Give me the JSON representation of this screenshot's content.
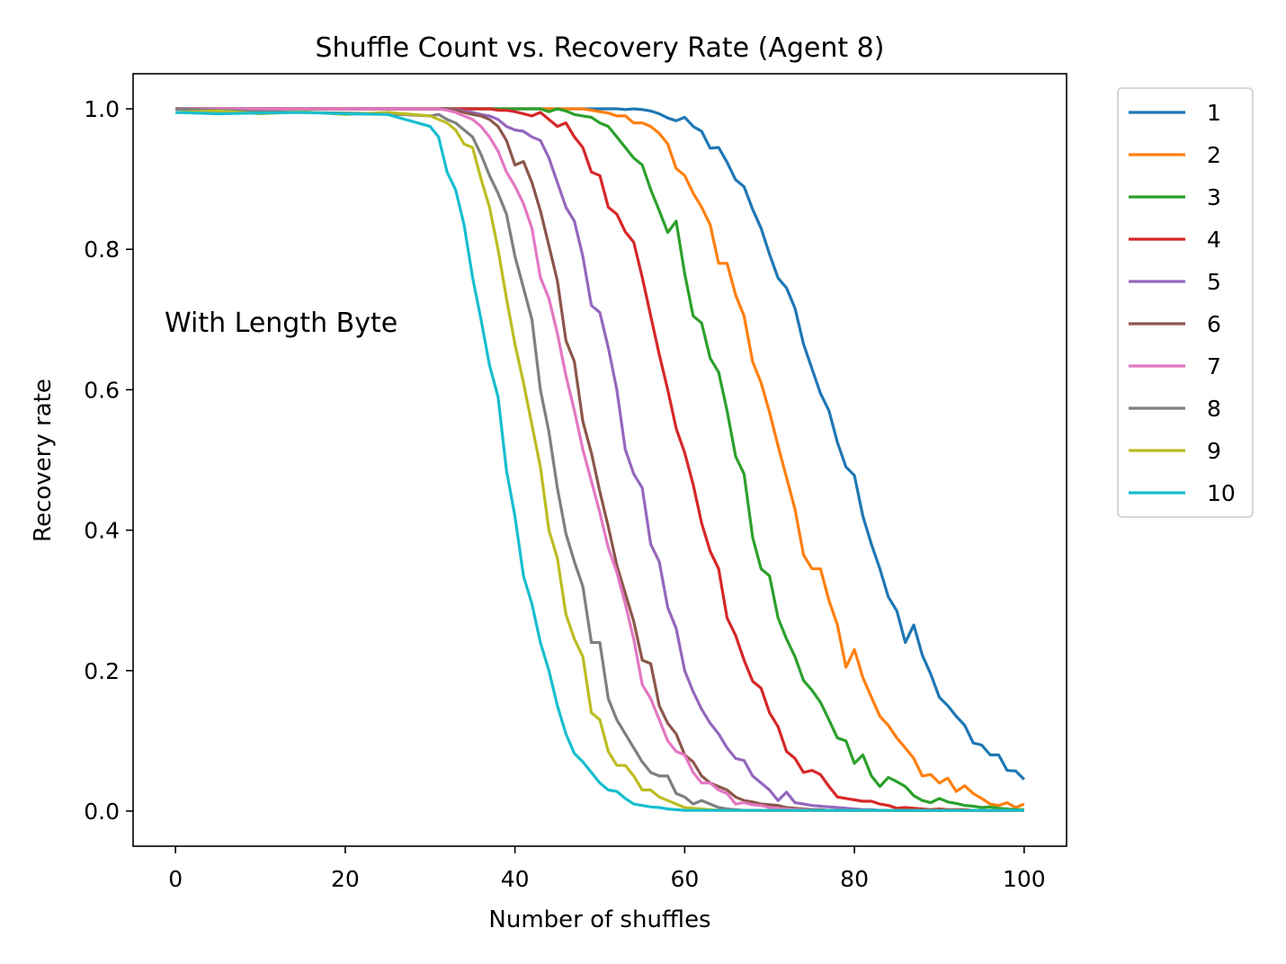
{
  "chart_data": {
    "type": "line",
    "title": "Shuffle Count vs. Recovery Rate (Agent 8)",
    "xlabel": "Number of shuffles",
    "ylabel": "Recovery rate",
    "xlim": [
      -5,
      105
    ],
    "ylim": [
      -0.05,
      1.05
    ],
    "xticks": [
      0,
      20,
      40,
      60,
      80,
      100
    ],
    "yticks": [
      0.0,
      0.2,
      0.4,
      0.6,
      0.8,
      1.0
    ],
    "xtick_labels": [
      "0",
      "20",
      "40",
      "60",
      "80",
      "100"
    ],
    "ytick_labels": [
      "0.0",
      "0.2",
      "0.4",
      "0.6",
      "0.8",
      "1.0"
    ],
    "grid": false,
    "legend_position": "outside right, top",
    "annotation": "With Length Byte",
    "x": [
      0,
      5,
      10,
      15,
      20,
      25,
      30,
      31,
      32,
      33,
      34,
      35,
      36,
      37,
      38,
      39,
      40,
      41,
      42,
      43,
      44,
      45,
      46,
      47,
      48,
      49,
      50,
      51,
      52,
      53,
      54,
      55,
      56,
      57,
      58,
      59,
      60,
      61,
      62,
      63,
      64,
      65,
      66,
      67,
      68,
      69,
      70,
      71,
      72,
      73,
      74,
      75,
      76,
      77,
      78,
      79,
      80,
      81,
      82,
      83,
      84,
      85,
      86,
      87,
      88,
      89,
      90,
      91,
      92,
      93,
      94,
      95,
      96,
      97,
      98,
      99,
      100
    ],
    "series": [
      {
        "name": "1",
        "color": "#1f77b4",
        "values": [
          1.0,
          1.0,
          1.0,
          1.0,
          1.0,
          1.0,
          1.0,
          1.0,
          1.0,
          1.0,
          1.0,
          1.0,
          1.0,
          1.0,
          1.0,
          1.0,
          1.0,
          1.0,
          1.0,
          1.0,
          1.0,
          1.0,
          1.0,
          1.0,
          1.0,
          1.0,
          1.0,
          1.0,
          1.0,
          0.999,
          1.0,
          0.999,
          0.997,
          0.993,
          0.987,
          0.983,
          0.988,
          0.975,
          0.968,
          0.944,
          0.945,
          0.924,
          0.899,
          0.889,
          0.857,
          0.83,
          0.793,
          0.759,
          0.745,
          0.716,
          0.665,
          0.63,
          0.595,
          0.57,
          0.525,
          0.49,
          0.478,
          0.42,
          0.38,
          0.345,
          0.305,
          0.285,
          0.24,
          0.265,
          0.222,
          0.195,
          0.162,
          0.15,
          0.135,
          0.122,
          0.097,
          0.094,
          0.08,
          0.08,
          0.058,
          0.057,
          0.045
        ]
      },
      {
        "name": "2",
        "color": "#ff7f0e",
        "values": [
          1.0,
          1.0,
          1.0,
          1.0,
          1.0,
          1.0,
          1.0,
          1.0,
          1.0,
          1.0,
          1.0,
          1.0,
          1.0,
          1.0,
          1.0,
          1.0,
          1.0,
          1.0,
          1.0,
          1.0,
          1.0,
          1.0,
          1.0,
          1.0,
          1.0,
          0.998,
          0.996,
          0.994,
          0.99,
          0.99,
          0.98,
          0.98,
          0.975,
          0.965,
          0.95,
          0.915,
          0.905,
          0.88,
          0.86,
          0.835,
          0.78,
          0.78,
          0.735,
          0.705,
          0.64,
          0.61,
          0.568,
          0.52,
          0.475,
          0.43,
          0.365,
          0.345,
          0.345,
          0.3,
          0.265,
          0.205,
          0.23,
          0.19,
          0.162,
          0.135,
          0.122,
          0.104,
          0.09,
          0.075,
          0.05,
          0.052,
          0.04,
          0.047,
          0.028,
          0.036,
          0.025,
          0.018,
          0.01,
          0.008,
          0.012,
          0.005,
          0.01
        ]
      },
      {
        "name": "3",
        "color": "#2ca02c",
        "values": [
          1.0,
          1.0,
          1.0,
          1.0,
          1.0,
          1.0,
          1.0,
          1.0,
          1.0,
          1.0,
          1.0,
          1.0,
          1.0,
          1.0,
          1.0,
          1.0,
          1.0,
          1.0,
          1.0,
          1.0,
          0.996,
          1.0,
          0.997,
          0.992,
          0.99,
          0.988,
          0.98,
          0.975,
          0.96,
          0.945,
          0.93,
          0.92,
          0.885,
          0.855,
          0.824,
          0.84,
          0.765,
          0.705,
          0.695,
          0.645,
          0.625,
          0.57,
          0.505,
          0.48,
          0.39,
          0.345,
          0.335,
          0.275,
          0.245,
          0.22,
          0.186,
          0.172,
          0.155,
          0.13,
          0.104,
          0.1,
          0.068,
          0.08,
          0.05,
          0.035,
          0.048,
          0.042,
          0.035,
          0.022,
          0.015,
          0.012,
          0.018,
          0.013,
          0.011,
          0.008,
          0.007,
          0.005,
          0.006,
          0.004,
          0.003,
          0.002,
          0.002
        ]
      },
      {
        "name": "4",
        "color": "#d62728",
        "values": [
          1.0,
          1.0,
          1.0,
          1.0,
          1.0,
          1.0,
          1.0,
          1.0,
          1.0,
          1.0,
          1.0,
          1.0,
          1.0,
          1.0,
          0.998,
          0.998,
          0.996,
          0.993,
          0.99,
          0.995,
          0.985,
          0.975,
          0.98,
          0.96,
          0.945,
          0.91,
          0.905,
          0.86,
          0.85,
          0.825,
          0.81,
          0.76,
          0.705,
          0.65,
          0.6,
          0.545,
          0.51,
          0.465,
          0.41,
          0.37,
          0.345,
          0.275,
          0.25,
          0.215,
          0.185,
          0.175,
          0.14,
          0.12,
          0.085,
          0.075,
          0.055,
          0.058,
          0.052,
          0.035,
          0.02,
          0.018,
          0.016,
          0.014,
          0.014,
          0.01,
          0.008,
          0.004,
          0.005,
          0.004,
          0.003,
          0.002,
          0.003,
          0.002,
          0.002,
          0.002,
          0.001,
          0.001,
          0.001,
          0.001,
          0.001,
          0.001,
          0.001
        ]
      },
      {
        "name": "5",
        "color": "#9467bd",
        "values": [
          1.0,
          1.0,
          1.0,
          1.0,
          1.0,
          1.0,
          1.0,
          1.0,
          1.0,
          0.999,
          0.997,
          0.995,
          0.992,
          0.99,
          0.985,
          0.975,
          0.97,
          0.968,
          0.96,
          0.955,
          0.93,
          0.895,
          0.86,
          0.84,
          0.79,
          0.72,
          0.71,
          0.66,
          0.6,
          0.515,
          0.48,
          0.46,
          0.38,
          0.355,
          0.29,
          0.26,
          0.2,
          0.17,
          0.145,
          0.125,
          0.11,
          0.09,
          0.075,
          0.072,
          0.05,
          0.04,
          0.03,
          0.015,
          0.027,
          0.012,
          0.01,
          0.008,
          0.007,
          0.006,
          0.005,
          0.004,
          0.003,
          0.002,
          0.002,
          0.001,
          0.001,
          0.001,
          0.001,
          0.001,
          0.001,
          0.001,
          0.001,
          0.001,
          0.001,
          0.001,
          0.001,
          0.001,
          0.001,
          0.001,
          0.001,
          0.001,
          0.001
        ]
      },
      {
        "name": "6",
        "color": "#8c564b",
        "values": [
          1.0,
          1.0,
          1.0,
          1.0,
          1.0,
          1.0,
          1.0,
          1.0,
          1.0,
          0.998,
          0.995,
          0.992,
          0.99,
          0.985,
          0.975,
          0.955,
          0.92,
          0.925,
          0.895,
          0.855,
          0.805,
          0.755,
          0.67,
          0.64,
          0.555,
          0.51,
          0.455,
          0.405,
          0.35,
          0.31,
          0.27,
          0.215,
          0.21,
          0.15,
          0.125,
          0.11,
          0.08,
          0.07,
          0.05,
          0.04,
          0.035,
          0.03,
          0.02,
          0.015,
          0.013,
          0.01,
          0.009,
          0.008,
          0.005,
          0.004,
          0.003,
          0.002,
          0.002,
          0.001,
          0.001,
          0.001,
          0.001,
          0.001,
          0.001,
          0.001,
          0.001,
          0.001,
          0.001,
          0.001,
          0.001,
          0.001,
          0.001,
          0.001,
          0.001,
          0.001,
          0.001,
          0.001,
          0.001,
          0.001,
          0.001,
          0.001,
          0.001
        ]
      },
      {
        "name": "7",
        "color": "#e377c2",
        "values": [
          1.0,
          1.0,
          1.0,
          1.0,
          1.0,
          1.0,
          1.0,
          1.0,
          0.998,
          0.995,
          0.99,
          0.985,
          0.975,
          0.96,
          0.94,
          0.91,
          0.89,
          0.865,
          0.83,
          0.76,
          0.73,
          0.68,
          0.62,
          0.57,
          0.515,
          0.47,
          0.425,
          0.375,
          0.34,
          0.295,
          0.245,
          0.18,
          0.16,
          0.13,
          0.1,
          0.085,
          0.08,
          0.055,
          0.04,
          0.04,
          0.03,
          0.025,
          0.01,
          0.012,
          0.009,
          0.008,
          0.005,
          0.004,
          0.003,
          0.002,
          0.002,
          0.001,
          0.001,
          0.001,
          0.001,
          0.001,
          0.001,
          0.001,
          0.001,
          0.001,
          0.001,
          0.001,
          0.001,
          0.001,
          0.001,
          0.001,
          0.001,
          0.001,
          0.001,
          0.001,
          0.001,
          0.001,
          0.001,
          0.001,
          0.001,
          0.001,
          0.001
        ]
      },
      {
        "name": "8",
        "color": "#7f7f7f",
        "values": [
          1.0,
          0.998,
          0.996,
          0.995,
          0.994,
          0.993,
          0.99,
          0.992,
          0.985,
          0.98,
          0.97,
          0.96,
          0.935,
          0.905,
          0.88,
          0.85,
          0.79,
          0.745,
          0.7,
          0.6,
          0.54,
          0.46,
          0.395,
          0.355,
          0.32,
          0.24,
          0.24,
          0.16,
          0.13,
          0.11,
          0.09,
          0.07,
          0.055,
          0.05,
          0.05,
          0.025,
          0.02,
          0.01,
          0.015,
          0.01,
          0.005,
          0.003,
          0.002,
          0.001,
          0.001,
          0.001,
          0.001,
          0.001,
          0.001,
          0.001,
          0.001,
          0.001,
          0.001,
          0.001,
          0.001,
          0.001,
          0.001,
          0.001,
          0.001,
          0.001,
          0.001,
          0.001,
          0.001,
          0.001,
          0.001,
          0.001,
          0.001,
          0.001,
          0.001,
          0.001,
          0.001,
          0.001,
          0.001,
          0.001,
          0.001,
          0.001,
          0.001
        ]
      },
      {
        "name": "9",
        "color": "#bcbd22",
        "values": [
          0.995,
          0.997,
          0.993,
          0.996,
          0.992,
          0.995,
          0.99,
          0.985,
          0.98,
          0.97,
          0.95,
          0.945,
          0.9,
          0.86,
          0.8,
          0.73,
          0.665,
          0.61,
          0.55,
          0.49,
          0.4,
          0.36,
          0.28,
          0.245,
          0.22,
          0.14,
          0.13,
          0.085,
          0.065,
          0.065,
          0.05,
          0.03,
          0.03,
          0.02,
          0.015,
          0.01,
          0.005,
          0.004,
          0.003,
          0.002,
          0.001,
          0.001,
          0.001,
          0.001,
          0.001,
          0.001,
          0.001,
          0.001,
          0.001,
          0.001,
          0.001,
          0.001,
          0.001,
          0.001,
          0.001,
          0.001,
          0.001,
          0.001,
          0.001,
          0.001,
          0.001,
          0.001,
          0.001,
          0.001,
          0.001,
          0.001,
          0.001,
          0.001,
          0.001,
          0.001,
          0.001,
          0.001,
          0.001,
          0.001,
          0.001,
          0.001,
          0.001
        ]
      },
      {
        "name": "10",
        "color": "#17becf",
        "values": [
          0.995,
          0.993,
          0.994,
          0.995,
          0.993,
          0.992,
          0.975,
          0.96,
          0.91,
          0.885,
          0.835,
          0.76,
          0.7,
          0.635,
          0.59,
          0.485,
          0.42,
          0.335,
          0.295,
          0.24,
          0.2,
          0.15,
          0.11,
          0.082,
          0.07,
          0.055,
          0.04,
          0.03,
          0.028,
          0.018,
          0.01,
          0.008,
          0.006,
          0.005,
          0.003,
          0.002,
          0.001,
          0.001,
          0.001,
          0.001,
          0.001,
          0.001,
          0.001,
          0.001,
          0.001,
          0.001,
          0.001,
          0.001,
          0.001,
          0.001,
          0.001,
          0.001,
          0.001,
          0.001,
          0.001,
          0.001,
          0.001,
          0.001,
          0.001,
          0.001,
          0.001,
          0.001,
          0.001,
          0.001,
          0.001,
          0.001,
          0.001,
          0.001,
          0.001,
          0.001,
          0.001,
          0.001,
          0.001,
          0.001,
          0.001,
          0.001,
          0.001
        ]
      }
    ]
  }
}
